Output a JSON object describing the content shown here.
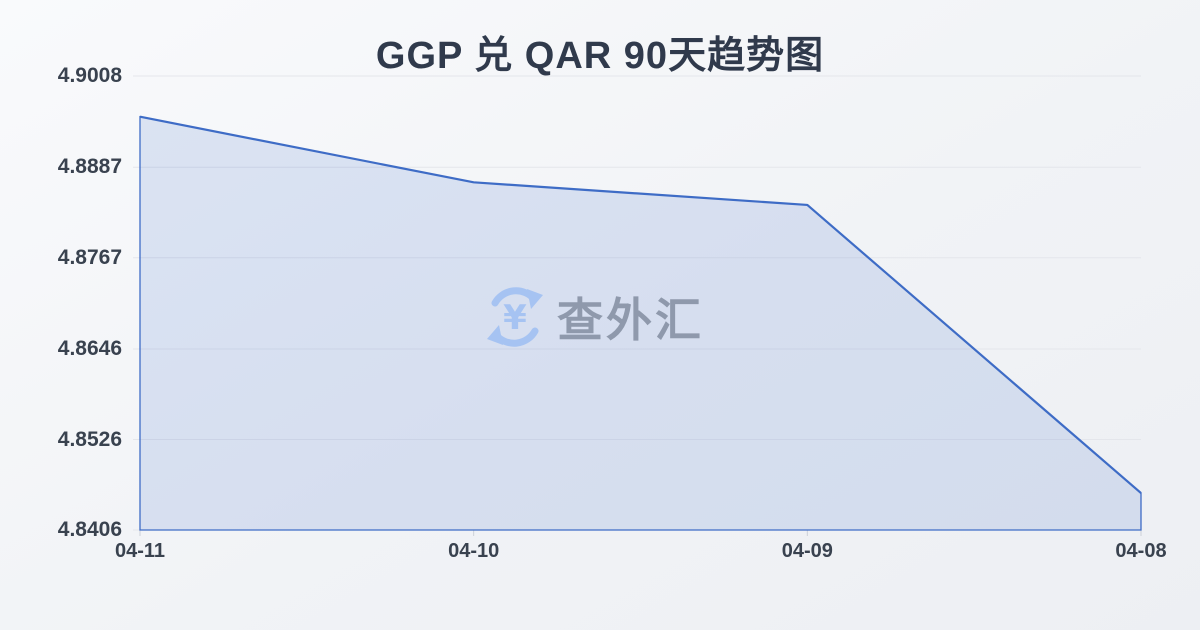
{
  "chart_data": {
    "type": "area",
    "title": "GGP 兑 QAR 90天趋势图",
    "categories": [
      "04-11",
      "04-10",
      "04-09",
      "04-08"
    ],
    "values": [
      4.8954,
      4.8867,
      4.8837,
      4.8455
    ],
    "series_name": "GGP/QAR",
    "y_ticks": [
      "4.9008",
      "4.8887",
      "4.8767",
      "4.8646",
      "4.8526",
      "4.8406"
    ],
    "ylim": [
      4.8406,
      4.9008
    ],
    "xlabel": "",
    "ylabel": "",
    "grid": true,
    "legend_position": "none",
    "line_color": "#3e6cc6",
    "area_fill": "rgba(62,108,198,0.15)",
    "grid_color": "#e4e6eb",
    "tick_color": "#ccd0d8",
    "label_color": "#39424f"
  },
  "watermark": {
    "text": "查外汇",
    "icon": "currency-exchange-icon",
    "icon_color": "#a6c3f2",
    "text_color": "#8f99ac"
  }
}
